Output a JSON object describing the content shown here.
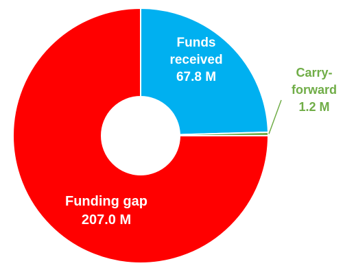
{
  "chart_data": {
    "type": "pie",
    "title": "",
    "donut": true,
    "slices": [
      {
        "name": "Funds received",
        "label_lines": [
          "Funds",
          "received",
          "67.8 M"
        ],
        "value": 67.8,
        "color": "#00b0f0",
        "label_color": "#ffffff"
      },
      {
        "name": "Carry-forward",
        "label_lines": [
          "Carry-",
          "forward",
          "1.2 M"
        ],
        "value": 1.2,
        "color": "#70ad47",
        "label_color": "#70ad47"
      },
      {
        "name": "Funding gap",
        "label_lines": [
          "Funding gap",
          "207.0 M"
        ],
        "value": 207.0,
        "color": "#ff0000",
        "label_color": "#ffffff"
      }
    ],
    "legend": "none",
    "unit": "M"
  }
}
